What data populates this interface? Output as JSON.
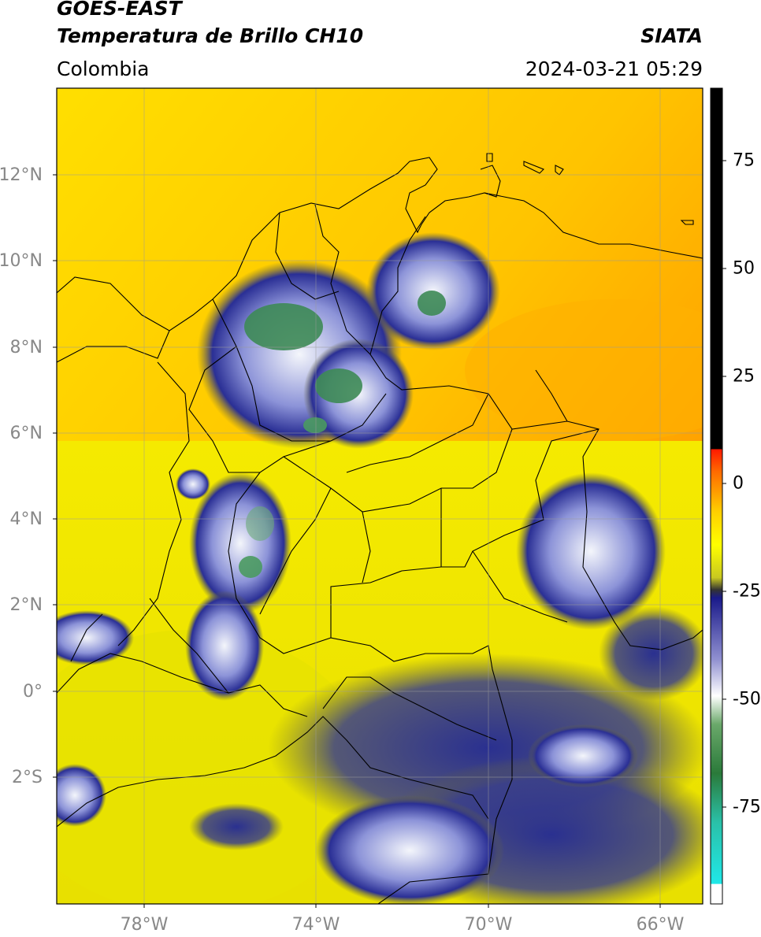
{
  "header": {
    "satellite": "GOES-EAST",
    "product": "Temperatura de Brillo CH10",
    "region": "Colombia",
    "organization": "SIATA",
    "timestamp": "2024-03-21 05:29"
  },
  "map": {
    "lat_ticks": [
      "12°N",
      "10°N",
      "8°N",
      "6°N",
      "4°N",
      "2°N",
      "0°",
      "2°S"
    ],
    "lon_ticks": [
      "78°W",
      "74°W",
      "70°W",
      "66°W"
    ],
    "extent": {
      "lon_min": -80,
      "lon_max": -65,
      "lat_min": -5,
      "lat_max": 14
    }
  },
  "colorbar": {
    "ticks": [
      "75",
      "50",
      "25",
      "0",
      "-25",
      "-50",
      "-75"
    ],
    "palette": {
      "above_10": "#000000",
      "range_0_10": "#e8231a",
      "range_-20_0": "#ffe600",
      "range_-30_-20": "#2a2a7a",
      "range_-50_-30": "#ffffff",
      "range_-70_-50": "#2e8b3d",
      "range_-90_-70": "#20d6c8",
      "below_-90": "#ffffff"
    }
  },
  "colors": {
    "warm": "#ffa000",
    "mid": "#ffee00",
    "cloud_dark": "#232a8c",
    "cloud_light": "#e8ecf8",
    "cold_core": "#3a8c4e"
  }
}
